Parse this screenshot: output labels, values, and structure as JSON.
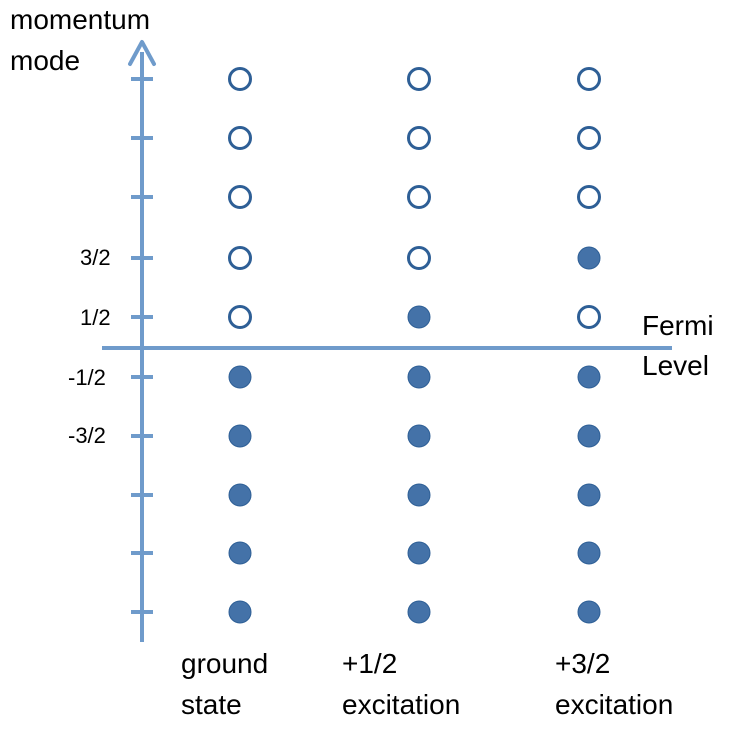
{
  "axis": {
    "title_line1": "momentum",
    "title_line2": "mode",
    "tick_labels": [
      "3/2",
      "1/2",
      "-1/2",
      "-3/2"
    ]
  },
  "fermi_label": {
    "line1": "Fermi",
    "line2": "Level"
  },
  "columns": [
    {
      "line1": "ground",
      "line2": "state",
      "occupied": [
        false,
        false,
        false,
        false,
        false,
        true,
        true,
        true,
        true,
        true
      ]
    },
    {
      "line1": "+1/2",
      "line2": "excitation",
      "occupied": [
        false,
        false,
        false,
        false,
        true,
        true,
        true,
        true,
        true,
        true
      ]
    },
    {
      "line1": "+3/2",
      "line2": "excitation",
      "occupied": [
        false,
        false,
        false,
        true,
        false,
        true,
        true,
        true,
        true,
        true
      ]
    }
  ],
  "colors": {
    "axis": "#6f9bcb",
    "dot_fill": "#4472a8",
    "dot_stroke": "#2e5f96",
    "text": "#000000"
  }
}
